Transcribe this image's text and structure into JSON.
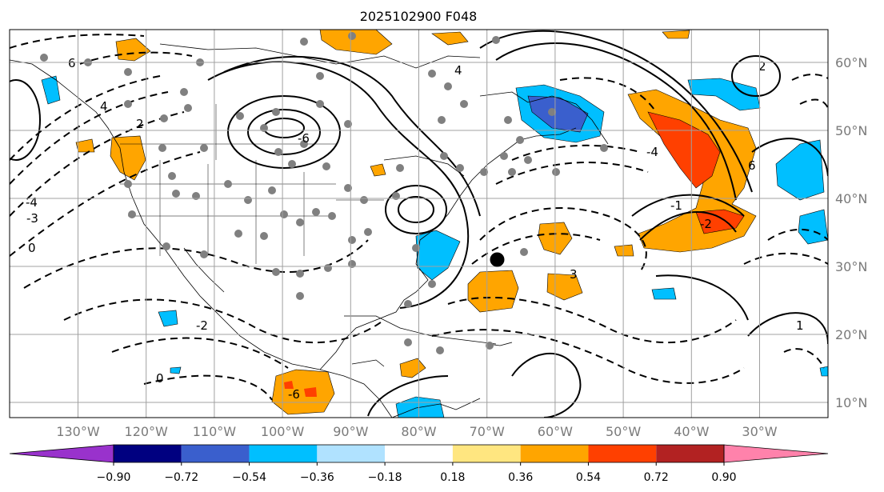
{
  "title": "2025102900 F048",
  "map": {
    "lon_labels": [
      "130°W",
      "120°W",
      "110°W",
      "100°W",
      "90°W",
      "80°W",
      "70°W",
      "60°W",
      "50°W",
      "40°W",
      "30°W"
    ],
    "lat_labels": [
      "60°N",
      "50°N",
      "40°N",
      "30°N",
      "20°N",
      "10°N"
    ],
    "contour_labels": [
      "6",
      "4",
      "2",
      "0",
      "-2",
      "-4",
      "-6",
      "-3",
      "3",
      "0",
      "-1",
      "1",
      "-2",
      "2",
      "6",
      "4",
      "-4",
      "-6"
    ],
    "marker": {
      "name": "storm-center",
      "lon": -68.5,
      "lat": 31
    }
  },
  "colorbar": {
    "ticks": [
      "−0.90",
      "−0.72",
      "−0.54",
      "−0.36",
      "−0.18",
      "0.18",
      "0.36",
      "0.54",
      "0.72",
      "0.90"
    ],
    "colors": [
      "#9932cc",
      "#000080",
      "#3a5fcd",
      "#00bfff",
      "#b0e2ff",
      "#ffffff",
      "#ffe680",
      "#ffa500",
      "#ff4000",
      "#b22222",
      "#ff82ab"
    ],
    "under_color": "#9932cc",
    "over_color": "#ff82ab"
  }
}
